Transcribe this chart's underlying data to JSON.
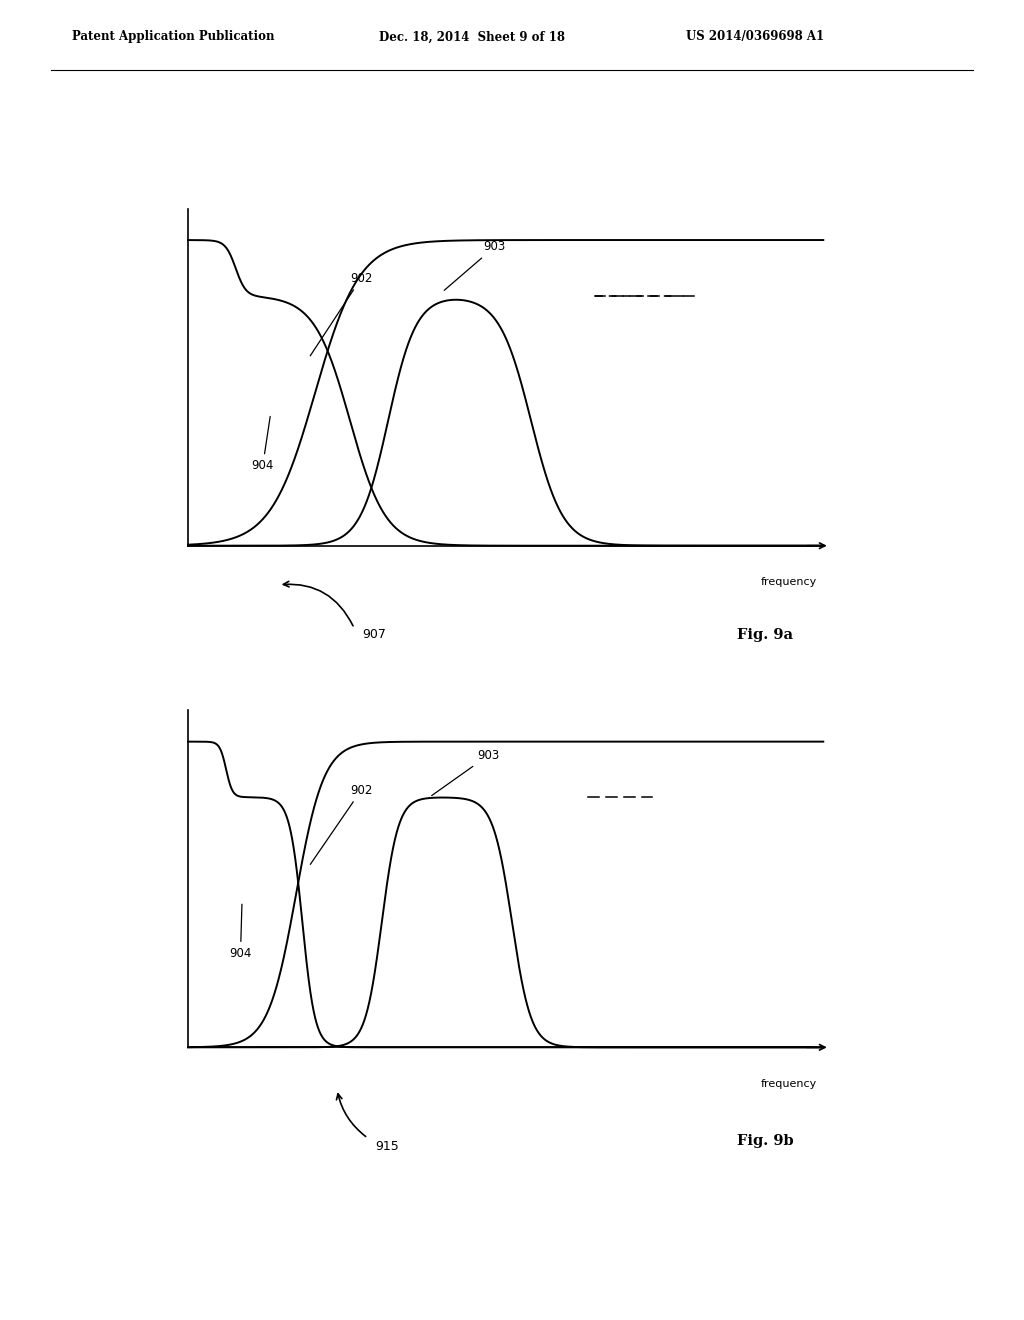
{
  "header_left": "Patent Application Publication",
  "header_mid": "Dec. 18, 2014  Sheet 9 of 18",
  "header_right": "US 2014/0369698 A1",
  "fig_a_label": "Fig. 9a",
  "fig_b_label": "Fig. 9b",
  "label_902": "902",
  "label_903": "903",
  "label_904": "904",
  "label_907": "907",
  "label_915": "915",
  "label_frequency": "frequency",
  "background_color": "#ffffff",
  "line_color": "#000000",
  "level_high": 0.88,
  "level_mid": 0.72
}
